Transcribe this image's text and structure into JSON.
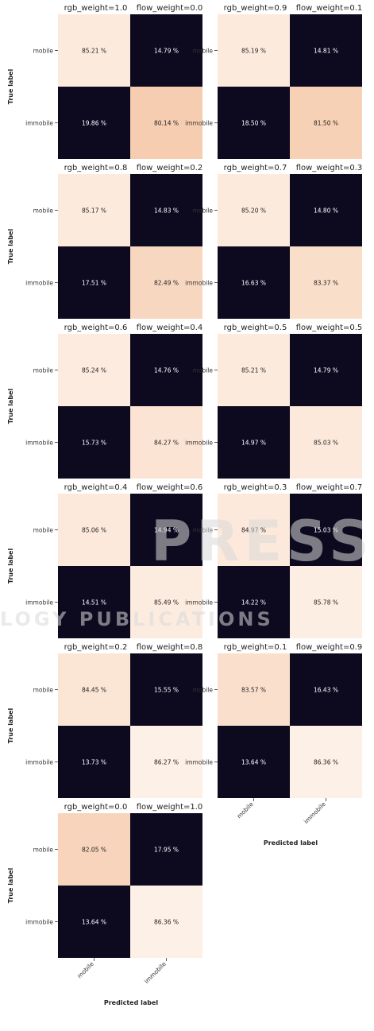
{
  "chart_data": [
    {
      "type": "heatmap",
      "title_left": "rgb_weight=1.0",
      "title_right": "flow_weight=0.0",
      "rows": [
        "mobile",
        "immobile"
      ],
      "cols": [
        "mobile",
        "immobile"
      ],
      "values": [
        [
          85.21,
          14.79
        ],
        [
          19.86,
          80.14
        ]
      ],
      "labels": [
        [
          "85.21 %",
          "14.79 %"
        ],
        [
          "19.86 %",
          "80.14 %"
        ]
      ],
      "ylabel": "True label",
      "xlabel": ""
    },
    {
      "type": "heatmap",
      "title_left": "rgb_weight=0.9",
      "title_right": "flow_weight=0.1",
      "rows": [
        "mobile",
        "immobile"
      ],
      "cols": [
        "mobile",
        "immobile"
      ],
      "values": [
        [
          85.19,
          14.81
        ],
        [
          18.5,
          81.5
        ]
      ],
      "labels": [
        [
          "85.19 %",
          "14.81 %"
        ],
        [
          "18.50 %",
          "81.50 %"
        ]
      ],
      "ylabel": "",
      "xlabel": ""
    },
    {
      "type": "heatmap",
      "title_left": "rgb_weight=0.8",
      "title_right": "flow_weight=0.2",
      "rows": [
        "mobile",
        "immobile"
      ],
      "cols": [
        "mobile",
        "immobile"
      ],
      "values": [
        [
          85.17,
          14.83
        ],
        [
          17.51,
          82.49
        ]
      ],
      "labels": [
        [
          "85.17 %",
          "14.83 %"
        ],
        [
          "17.51 %",
          "82.49 %"
        ]
      ],
      "ylabel": "True label",
      "xlabel": ""
    },
    {
      "type": "heatmap",
      "title_left": "rgb_weight=0.7",
      "title_right": "flow_weight=0.3",
      "rows": [
        "mobile",
        "immobile"
      ],
      "cols": [
        "mobile",
        "immobile"
      ],
      "values": [
        [
          85.2,
          14.8
        ],
        [
          16.63,
          83.37
        ]
      ],
      "labels": [
        [
          "85.20 %",
          "14.80 %"
        ],
        [
          "16.63 %",
          "83.37 %"
        ]
      ],
      "ylabel": "",
      "xlabel": ""
    },
    {
      "type": "heatmap",
      "title_left": "rgb_weight=0.6",
      "title_right": "flow_weight=0.4",
      "rows": [
        "mobile",
        "immobile"
      ],
      "cols": [
        "mobile",
        "immobile"
      ],
      "values": [
        [
          85.24,
          14.76
        ],
        [
          15.73,
          84.27
        ]
      ],
      "labels": [
        [
          "85.24 %",
          "14.76 %"
        ],
        [
          "15.73 %",
          "84.27 %"
        ]
      ],
      "ylabel": "True label",
      "xlabel": ""
    },
    {
      "type": "heatmap",
      "title_left": "rgb_weight=0.5",
      "title_right": "flow_weight=0.5",
      "rows": [
        "mobile",
        "immobile"
      ],
      "cols": [
        "mobile",
        "immobile"
      ],
      "values": [
        [
          85.21,
          14.79
        ],
        [
          14.97,
          85.03
        ]
      ],
      "labels": [
        [
          "85.21 %",
          "14.79 %"
        ],
        [
          "14.97 %",
          "85.03 %"
        ]
      ],
      "ylabel": "",
      "xlabel": ""
    },
    {
      "type": "heatmap",
      "title_left": "rgb_weight=0.4",
      "title_right": "flow_weight=0.6",
      "rows": [
        "mobile",
        "immobile"
      ],
      "cols": [
        "mobile",
        "immobile"
      ],
      "values": [
        [
          85.06,
          14.94
        ],
        [
          14.51,
          85.49
        ]
      ],
      "labels": [
        [
          "85.06 %",
          "14.94 %"
        ],
        [
          "14.51 %",
          "85.49 %"
        ]
      ],
      "ylabel": "True label",
      "xlabel": ""
    },
    {
      "type": "heatmap",
      "title_left": "rgb_weight=0.3",
      "title_right": "flow_weight=0.7",
      "rows": [
        "mobile",
        "immobile"
      ],
      "cols": [
        "mobile",
        "immobile"
      ],
      "values": [
        [
          84.97,
          15.03
        ],
        [
          14.22,
          85.78
        ]
      ],
      "labels": [
        [
          "84.97 %",
          "15.03 %"
        ],
        [
          "14.22 %",
          "85.78 %"
        ]
      ],
      "ylabel": "",
      "xlabel": ""
    },
    {
      "type": "heatmap",
      "title_left": "rgb_weight=0.2",
      "title_right": "flow_weight=0.8",
      "rows": [
        "mobile",
        "immobile"
      ],
      "cols": [
        "mobile",
        "immobile"
      ],
      "values": [
        [
          84.45,
          15.55
        ],
        [
          13.73,
          86.27
        ]
      ],
      "labels": [
        [
          "84.45 %",
          "15.55 %"
        ],
        [
          "13.73 %",
          "86.27 %"
        ]
      ],
      "ylabel": "True label",
      "xlabel": ""
    },
    {
      "type": "heatmap",
      "title_left": "rgb_weight=0.1",
      "title_right": "flow_weight=0.9",
      "rows": [
        "mobile",
        "immobile"
      ],
      "cols": [
        "mobile",
        "immobile"
      ],
      "values": [
        [
          83.57,
          16.43
        ],
        [
          13.64,
          86.36
        ]
      ],
      "labels": [
        [
          "83.57 %",
          "16.43 %"
        ],
        [
          "13.64 %",
          "86.36 %"
        ]
      ],
      "ylabel": "",
      "xlabel": "Predicted label"
    },
    {
      "type": "heatmap",
      "title_left": "rgb_weight=0.0",
      "title_right": "flow_weight=1.0",
      "rows": [
        "mobile",
        "immobile"
      ],
      "cols": [
        "mobile",
        "immobile"
      ],
      "values": [
        [
          82.05,
          17.95
        ],
        [
          13.64,
          86.36
        ]
      ],
      "labels": [
        [
          "82.05 %",
          "17.95 %"
        ],
        [
          "13.64 %",
          "86.36 %"
        ]
      ],
      "ylabel": "True label",
      "xlabel": "Predicted label"
    }
  ],
  "colors": {
    "dark": "#0d0a20",
    "light": "#fdf0e6",
    "mid": "#f6cdb0",
    "text_dark": "#ffffff",
    "text_light": "#222222"
  },
  "watermark": {
    "big": "PRESS",
    "small": "LOGY PUBLICATIONS"
  }
}
